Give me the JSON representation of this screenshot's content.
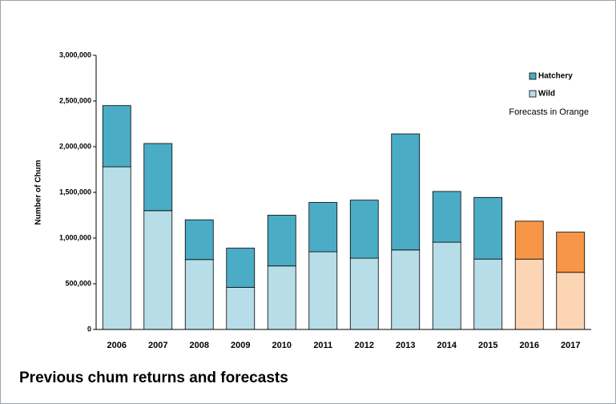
{
  "chart_data": {
    "type": "stacked_bar",
    "caption": "Previous chum returns and forecasts",
    "ylabel": "Number of Chum",
    "annotation": "Forecasts in Orange",
    "categories": [
      "2006",
      "2007",
      "2008",
      "2009",
      "2010",
      "2011",
      "2012",
      "2013",
      "2014",
      "2015",
      "2016",
      "2017"
    ],
    "series": [
      {
        "name": "Wild",
        "color": "#b7dde8",
        "colors": [
          "#b7dde8",
          "#b7dde8",
          "#b7dde8",
          "#b7dde8",
          "#b7dde8",
          "#b7dde8",
          "#b7dde8",
          "#b7dde8",
          "#b7dde8",
          "#b7dde8",
          "#fcd5b5",
          "#fcd5b5"
        ],
        "values": [
          1780000,
          1300000,
          765000,
          460000,
          695000,
          850000,
          780000,
          870000,
          955000,
          770000,
          770000,
          625000
        ]
      },
      {
        "name": "Hatchery",
        "color": "#4bacc6",
        "colors": [
          "#4bacc6",
          "#4bacc6",
          "#4bacc6",
          "#4bacc6",
          "#4bacc6",
          "#4bacc6",
          "#4bacc6",
          "#4bacc6",
          "#4bacc6",
          "#4bacc6",
          "#f79646",
          "#f79646"
        ],
        "values": [
          670000,
          735000,
          435000,
          430000,
          555000,
          540000,
          635000,
          1270000,
          555000,
          675000,
          415000,
          440000
        ]
      }
    ],
    "ylim": [
      0,
      3000000
    ],
    "yticks": [
      0,
      {
        "value": 500000,
        "label": "500,000"
      },
      {
        "value": 1000000,
        "label": "1,000,000"
      },
      {
        "value": 1500000,
        "label": "1,500,000"
      },
      {
        "value": 2000000,
        "label": "2,000,000"
      },
      {
        "value": 2500000,
        "label": "2,500,000"
      },
      {
        "value": 3000000,
        "label": "3,000,000"
      }
    ]
  }
}
